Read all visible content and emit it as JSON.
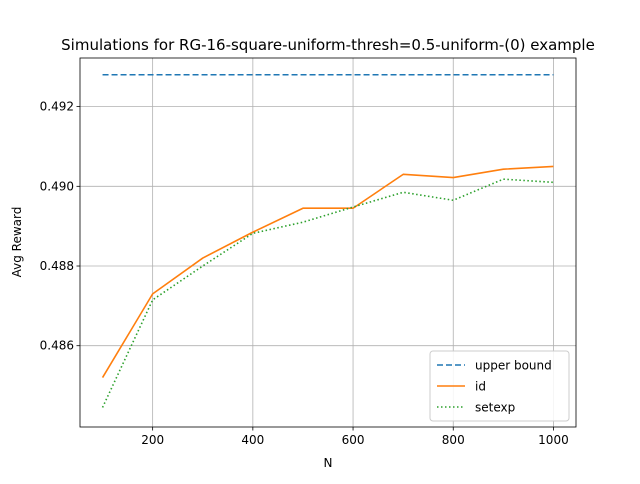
{
  "chart_data": {
    "type": "line",
    "title": "Simulations for RG-16-square-uniform-thresh=0.5-uniform-(0) example",
    "xlabel": "N",
    "ylabel": "Avg Reward",
    "xlim": [
      55,
      1045
    ],
    "ylim": [
      0.48396,
      0.49322
    ],
    "xticks": [
      200,
      400,
      600,
      800,
      1000
    ],
    "xtick_labels": [
      "200",
      "400",
      "600",
      "800",
      "1000"
    ],
    "yticks": [
      0.486,
      0.488,
      0.49,
      0.492
    ],
    "ytick_labels": [
      "0.486",
      "0.488",
      "0.490",
      "0.492"
    ],
    "grid": true,
    "legend_position": "lower right",
    "x": [
      100,
      200,
      300,
      400,
      500,
      600,
      700,
      800,
      900,
      1000
    ],
    "series": [
      {
        "name": "upper bound",
        "style": "dashed",
        "color": "#1f77b4",
        "values": [
          0.4928,
          0.4928,
          0.4928,
          0.4928,
          0.4928,
          0.4928,
          0.4928,
          0.4928,
          0.4928,
          0.4928
        ]
      },
      {
        "name": "id",
        "style": "solid",
        "color": "#ff7f0e",
        "values": [
          0.4852,
          0.4873,
          0.4882,
          0.48885,
          0.48945,
          0.48945,
          0.4903,
          0.49022,
          0.49043,
          0.4905
        ]
      },
      {
        "name": "setexp",
        "style": "dotted",
        "color": "#2ca02c",
        "values": [
          0.48445,
          0.48715,
          0.488,
          0.48882,
          0.4891,
          0.48948,
          0.48985,
          0.48965,
          0.49018,
          0.4901
        ]
      }
    ]
  }
}
